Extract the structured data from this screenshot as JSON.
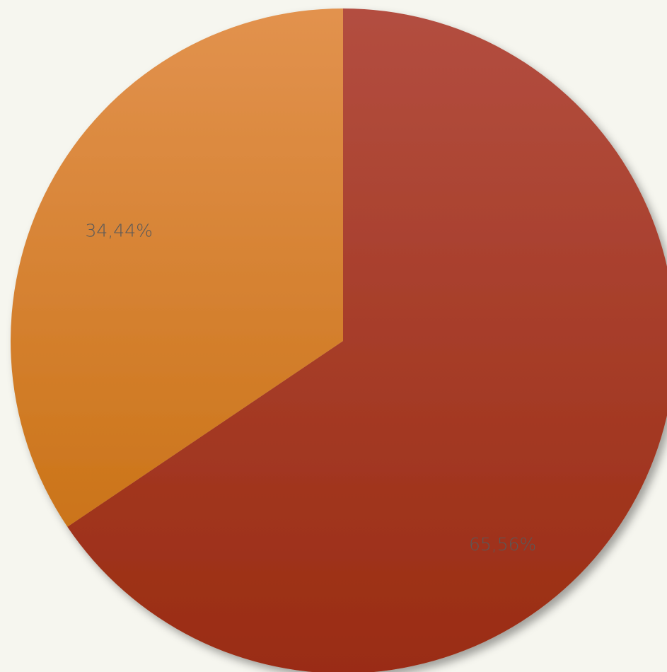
{
  "chart_data": {
    "type": "pie",
    "categories": [
      "",
      ""
    ],
    "values": [
      65.56,
      34.44
    ],
    "labels": [
      "65,56%",
      "34,44%"
    ],
    "start_angle_deg": 0,
    "direction": "clockwise",
    "legend": "none",
    "colors": {
      "slice_1": [
        "#b34e40",
        "#9a2c12"
      ],
      "slice_2": [
        "#e2924e",
        "#cb7419"
      ],
      "label_text": "#595959",
      "background": "#f6f6ef"
    }
  }
}
